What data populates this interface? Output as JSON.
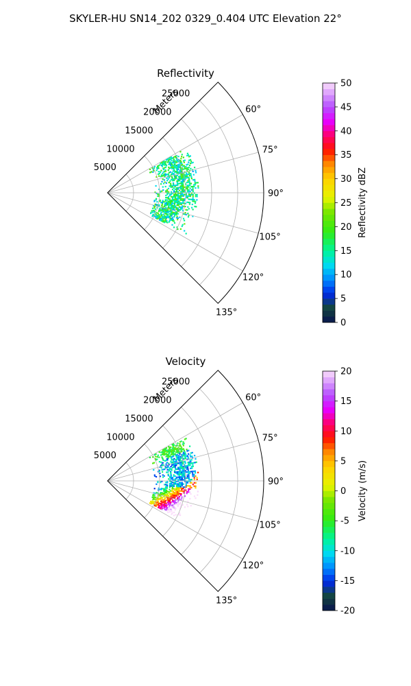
{
  "figure": {
    "title": "SKYLER-HU  SN14_202  0329_0.404 UTC Elevation 22°"
  },
  "chart_data": [
    {
      "type": "heatmap",
      "projection": "polar-sector",
      "title": "Reflectivity",
      "r_axis_label": "Meters",
      "r_ticks": [
        5000,
        10000,
        15000,
        20000,
        25000
      ],
      "r_tick_labels": [
        "5000",
        "10000",
        "15000",
        "20000",
        "25000"
      ],
      "r_max": 30000,
      "theta_range_deg": [
        45,
        135
      ],
      "theta_ticks": [
        60,
        75,
        90,
        105,
        120,
        135
      ],
      "theta_tick_labels": [
        "60°",
        "75°",
        "90°",
        "105°",
        "120°",
        "135°"
      ],
      "grid": true,
      "colorbar": {
        "label": "Reflectivity dBZ",
        "range": [
          0,
          50
        ],
        "ticks": [
          0,
          5,
          10,
          15,
          20,
          25,
          30,
          35,
          40,
          45,
          50
        ],
        "tick_labels": [
          "0",
          "5",
          "10",
          "15",
          "20",
          "25",
          "30",
          "35",
          "40",
          "45",
          "50"
        ]
      },
      "echo_region": {
        "r_range": [
          9000,
          17500
        ],
        "theta_range_deg": [
          60,
          118
        ]
      },
      "dominant_values": [
        12,
        14,
        16,
        20
      ]
    },
    {
      "type": "heatmap",
      "projection": "polar-sector",
      "title": "Velocity",
      "r_axis_label": "Meters",
      "r_ticks": [
        5000,
        10000,
        15000,
        20000,
        25000
      ],
      "r_tick_labels": [
        "5000",
        "10000",
        "15000",
        "20000",
        "25000"
      ],
      "r_max": 30000,
      "theta_range_deg": [
        45,
        135
      ],
      "theta_ticks": [
        60,
        75,
        90,
        105,
        120,
        135
      ],
      "theta_tick_labels": [
        "60°",
        "75°",
        "90°",
        "105°",
        "120°",
        "135°"
      ],
      "grid": true,
      "colorbar": {
        "label": "Velocity (m/s)",
        "range": [
          -20,
          20
        ],
        "ticks": [
          -20,
          -15,
          -10,
          -5,
          0,
          5,
          10,
          15,
          20
        ],
        "tick_labels": [
          "-20",
          "-15",
          "-10",
          "-5",
          "0",
          "5",
          "10",
          "15",
          "20"
        ]
      },
      "echo_region": {
        "r_range": [
          9000,
          17500
        ],
        "theta_range_deg": [
          60,
          118
        ]
      },
      "dominant_values": [
        -12,
        -6,
        2,
        14
      ]
    }
  ]
}
